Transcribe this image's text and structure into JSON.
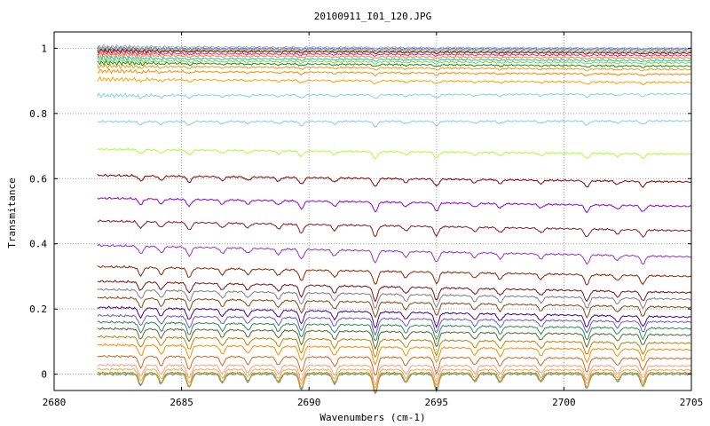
{
  "chart_data": {
    "type": "line",
    "title": "20100911_I01_120.JPG",
    "xlabel": "Wavenumbers (cm-1)",
    "ylabel": "Transmitance",
    "xlim": [
      2680,
      2705
    ],
    "ylim": [
      -0.05,
      1.05
    ],
    "xticks": [
      2680,
      2685,
      2690,
      2695,
      2700,
      2705
    ],
    "yticks": [
      0,
      0.2,
      0.4,
      0.6,
      0.8,
      1
    ],
    "ytick_labels": [
      "0",
      "0.2",
      "0.4",
      "0.6",
      "0.8",
      "1"
    ],
    "grid": true,
    "legend": "none",
    "x_start": 2681.7,
    "x_end": 2705,
    "absorption_lines": [
      {
        "x": 2683.4,
        "depth": 0.6
      },
      {
        "x": 2684.2,
        "depth": 0.5
      },
      {
        "x": 2685.3,
        "depth": 0.7
      },
      {
        "x": 2686.6,
        "depth": 0.45
      },
      {
        "x": 2687.6,
        "depth": 0.4
      },
      {
        "x": 2688.8,
        "depth": 0.45
      },
      {
        "x": 2689.7,
        "depth": 0.8
      },
      {
        "x": 2691.0,
        "depth": 0.5
      },
      {
        "x": 2692.6,
        "depth": 1.0
      },
      {
        "x": 2693.8,
        "depth": 0.45
      },
      {
        "x": 2695.0,
        "depth": 0.85
      },
      {
        "x": 2696.5,
        "depth": 0.4
      },
      {
        "x": 2697.5,
        "depth": 0.45
      },
      {
        "x": 2699.1,
        "depth": 0.4
      },
      {
        "x": 2700.9,
        "depth": 0.75
      },
      {
        "x": 2702.1,
        "depth": 0.4
      },
      {
        "x": 2703.1,
        "depth": 0.65
      }
    ],
    "series": [
      {
        "color": "#b0b0b0",
        "start": 1.005,
        "end": 1.0
      },
      {
        "color": "#1e90ff",
        "start": 1.0,
        "end": 0.998
      },
      {
        "color": "#ff69b4",
        "start": 0.998,
        "end": 0.995
      },
      {
        "color": "#32cd32",
        "start": 0.995,
        "end": 0.99
      },
      {
        "color": "#8b0000",
        "start": 0.992,
        "end": 0.985
      },
      {
        "color": "#ff1493",
        "start": 0.985,
        "end": 0.978
      },
      {
        "color": "#ff8c00",
        "start": 0.978,
        "end": 0.97
      },
      {
        "color": "#00ced1",
        "start": 0.97,
        "end": 0.962
      },
      {
        "color": "#9acd32",
        "start": 0.962,
        "end": 0.955
      },
      {
        "color": "#228b22",
        "start": 0.955,
        "end": 0.945
      },
      {
        "color": "#daa520",
        "start": 0.945,
        "end": 0.935
      },
      {
        "color": "#ff8c00",
        "start": 0.93,
        "end": 0.92
      },
      {
        "color": "#ffa500",
        "start": 0.905,
        "end": 0.895
      },
      {
        "color": "#7fd8d8",
        "start": 0.855,
        "end": 0.86
      },
      {
        "color": "#87d0d0",
        "start": 0.775,
        "end": 0.777
      },
      {
        "color": "#adff2f",
        "start": 0.69,
        "end": 0.675
      },
      {
        "color": "#8b0000",
        "start": 0.61,
        "end": 0.59
      },
      {
        "color": "#9400d3",
        "start": 0.54,
        "end": 0.515
      },
      {
        "color": "#8b1a1a",
        "start": 0.47,
        "end": 0.44
      },
      {
        "color": "#9932cc",
        "start": 0.395,
        "end": 0.36
      },
      {
        "color": "#8b2500",
        "start": 0.33,
        "end": 0.3
      },
      {
        "color": "#7a1010",
        "start": 0.285,
        "end": 0.25
      },
      {
        "color": "#808080",
        "start": 0.26,
        "end": 0.23
      },
      {
        "color": "#8b4513",
        "start": 0.235,
        "end": 0.205
      },
      {
        "color": "#4b0082",
        "start": 0.205,
        "end": 0.175
      },
      {
        "color": "#6a5acd",
        "start": 0.18,
        "end": 0.16
      },
      {
        "color": "#2e8b57",
        "start": 0.16,
        "end": 0.14
      },
      {
        "color": "#556b2f",
        "start": 0.14,
        "end": 0.12
      },
      {
        "color": "#b8860b",
        "start": 0.115,
        "end": 0.095
      },
      {
        "color": "#ff8c00",
        "start": 0.09,
        "end": 0.075
      },
      {
        "color": "#d2691e",
        "start": 0.055,
        "end": 0.048
      },
      {
        "color": "#ffa07a",
        "start": 0.028,
        "end": 0.025
      },
      {
        "color": "#f4a460",
        "start": 0.015,
        "end": 0.013
      },
      {
        "color": "#32cd32",
        "start": 0.004,
        "end": 0.004
      },
      {
        "color": "#1e90ff",
        "start": 0.0,
        "end": 0.0
      },
      {
        "color": "#ff8c00",
        "start": 0.002,
        "end": 0.002
      }
    ]
  }
}
